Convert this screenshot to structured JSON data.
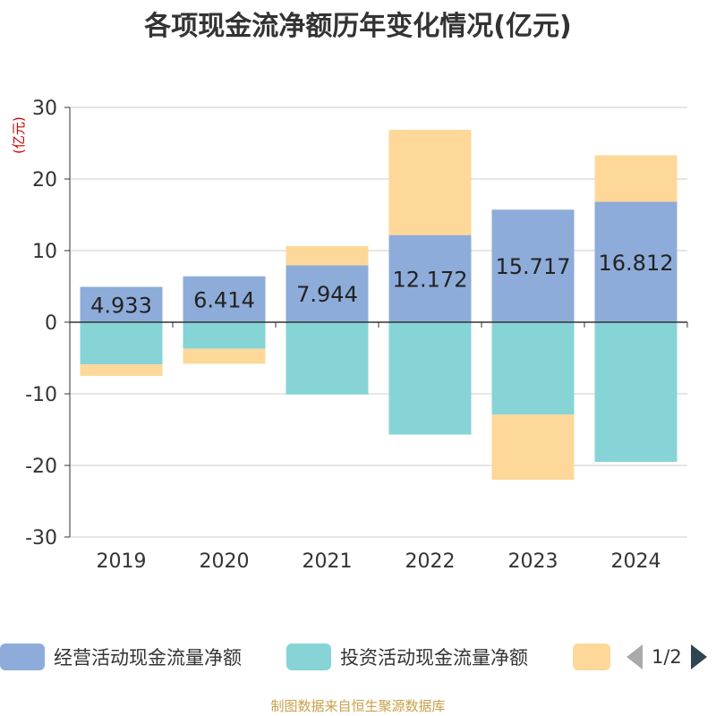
{
  "chart_data": {
    "type": "bar",
    "title": "各项现金流净额历年变化情况(亿元)",
    "unit_label": "(亿元)",
    "categories": [
      "2019",
      "2020",
      "2021",
      "2022",
      "2023",
      "2024"
    ],
    "ylim": [
      -30,
      30
    ],
    "yticks": [
      30,
      20,
      10,
      0,
      -10,
      -20,
      -30
    ],
    "stacked": true,
    "grid": true,
    "legend_position": "bottom",
    "series": [
      {
        "name": "经营活动现金流量净额",
        "color": "#8eacd9",
        "values": [
          4.933,
          6.414,
          7.944,
          12.172,
          15.717,
          16.812
        ],
        "labels": [
          "4.933",
          "6.414",
          "7.944",
          "12.172",
          "15.717",
          "16.812"
        ]
      },
      {
        "name": "投资活动现金流量净额",
        "color": "#86d4d6",
        "values": [
          -5.9,
          -3.7,
          -10.1,
          -15.7,
          -12.9,
          -19.5
        ]
      },
      {
        "name": "",
        "color": "#fdd899",
        "values": [
          -1.6,
          -2.1,
          2.7,
          14.7,
          -9.1,
          6.5
        ]
      }
    ]
  },
  "legend": {
    "items": [
      {
        "label": "经营活动现金流量净额",
        "color": "#8eacd9"
      },
      {
        "label": "投资活动现金流量净额",
        "color": "#86d4d6"
      },
      {
        "label": "",
        "color": "#fdd899"
      }
    ],
    "page_text": "1/2"
  },
  "source": "制图数据来自恒生聚源数据库"
}
